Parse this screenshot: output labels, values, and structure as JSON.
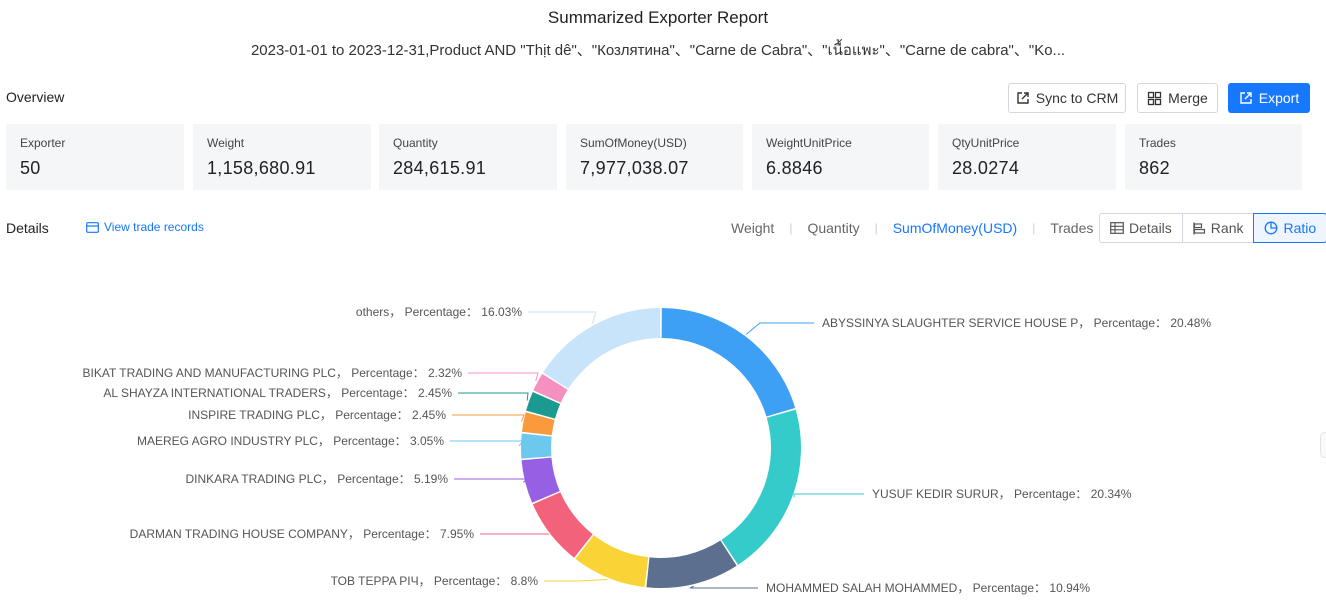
{
  "report": {
    "title": "Summarized Exporter Report",
    "subtitle": "2023-01-01 to 2023-12-31,Product AND \"Thịt dê\"、\"Козлятина\"、\"Carne de Cabra\"、\"เนื้อแพะ\"、\"Carne de cabra\"、\"Ko..."
  },
  "overview": {
    "label": "Overview",
    "buttons": {
      "sync_crm": "Sync to CRM",
      "merge": "Merge",
      "export": "Export"
    },
    "cards": [
      {
        "label": "Exporter",
        "value": "50"
      },
      {
        "label": "Weight",
        "value": "1,158,680.91"
      },
      {
        "label": "Quantity",
        "value": "284,615.91"
      },
      {
        "label": "SumOfMoney(USD)",
        "value": "7,977,038.07"
      },
      {
        "label": "WeightUnitPrice",
        "value": "6.8846"
      },
      {
        "label": "QtyUnitPrice",
        "value": "28.0274"
      },
      {
        "label": "Trades",
        "value": "862"
      }
    ]
  },
  "details": {
    "label": "Details",
    "view_records": "View trade records",
    "metric_tabs": [
      "Weight",
      "Quantity",
      "SumOfMoney(USD)",
      "Trades"
    ],
    "active_metric": "SumOfMoney(USD)",
    "view_modes": [
      "Details",
      "Rank",
      "Ratio"
    ],
    "active_view": "Ratio"
  },
  "colors": {
    "accent": "#1677ff"
  },
  "chart_data": {
    "type": "pie",
    "donut": true,
    "label_template": "{name}， Percentage： {value}%",
    "slices": [
      {
        "name": "ABYSSINYA SLAUGHTER SERVICE HOUSE P",
        "value": 20.48,
        "color": "#3ea0f5"
      },
      {
        "name": "YUSUF KEDIR SURUR",
        "value": 20.34,
        "color": "#36cbcb"
      },
      {
        "name": "MOHAMMED SALAH MOHAMMED",
        "value": 10.94,
        "color": "#5d6f8e"
      },
      {
        "name": "TOB TEPPA PIЧ",
        "value": 8.8,
        "color": "#fad337"
      },
      {
        "name": "DARMAN TRADING HOUSE COMPANY",
        "value": 7.95,
        "color": "#f2637b"
      },
      {
        "name": "DINKARA TRADING PLC",
        "value": 5.19,
        "color": "#975fe4"
      },
      {
        "name": "MAEREG AGRO INDUSTRY PLC",
        "value": 3.05,
        "color": "#6cc8ec"
      },
      {
        "name": "INSPIRE TRADING PLC",
        "value": 2.45,
        "color": "#fa9a3d"
      },
      {
        "name": "AL SHAYZA INTERNATIONAL TRADERS",
        "value": 2.45,
        "color": "#1b9a8f"
      },
      {
        "name": "BIKAT TRADING AND MANUFACTURING PLC",
        "value": 2.32,
        "color": "#f590c0"
      },
      {
        "name": "others",
        "value": 16.03,
        "color": "#c8e4fb"
      }
    ]
  }
}
